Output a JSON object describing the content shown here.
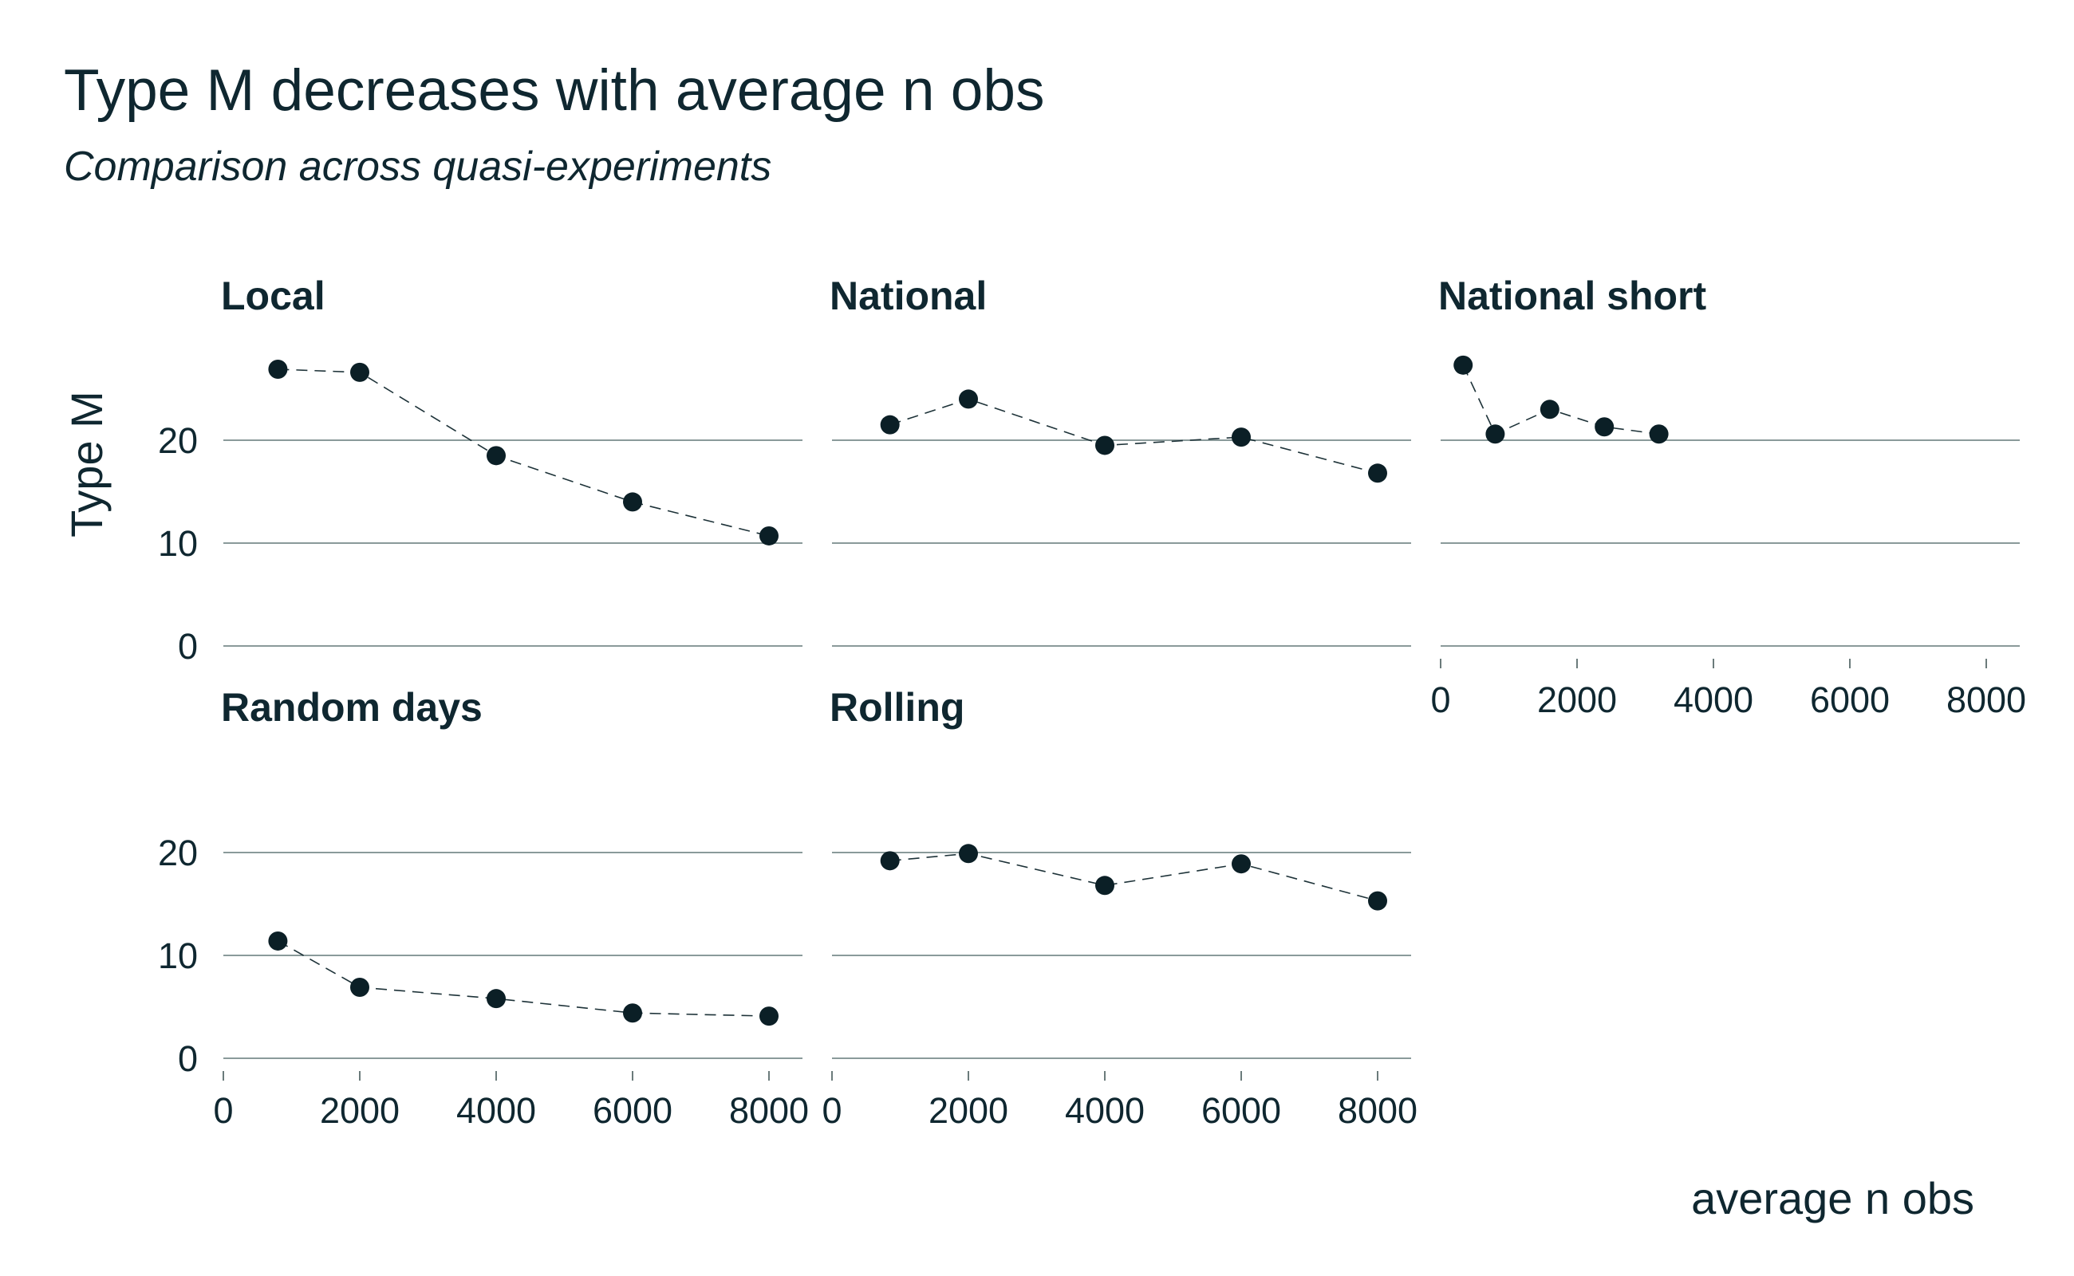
{
  "chart_data": {
    "type": "scatter",
    "title": "Type M decreases with average n obs",
    "subtitle": "Comparison across quasi-experiments",
    "xlabel": "average n obs",
    "ylabel": "Type M",
    "xlim": [
      0,
      8000
    ],
    "ylim": [
      0,
      27
    ],
    "x_ticks": [
      "0",
      "2000",
      "4000",
      "6000",
      "8000"
    ],
    "y_ticks": [
      "0",
      "10",
      "20"
    ],
    "y_tick_values": [
      0,
      10,
      20
    ],
    "x_tick_values": [
      0,
      2000,
      4000,
      6000,
      8000
    ],
    "grid": "horizontal",
    "facets": [
      {
        "name": "Local",
        "x": [
          800,
          2000,
          4000,
          6000,
          8000
        ],
        "y": [
          26.9,
          26.6,
          18.5,
          14.0,
          10.7
        ]
      },
      {
        "name": "National",
        "x": [
          850,
          2000,
          4000,
          6000,
          8000
        ],
        "y": [
          21.5,
          24.0,
          19.5,
          20.3,
          16.8
        ]
      },
      {
        "name": "National short",
        "x": [
          330,
          800,
          1600,
          2400,
          3200
        ],
        "y": [
          27.3,
          20.6,
          23.0,
          21.3,
          20.6
        ]
      },
      {
        "name": "Random days",
        "x": [
          800,
          2000,
          4000,
          6000,
          8000
        ],
        "y": [
          11.4,
          6.9,
          5.8,
          4.4,
          4.1
        ]
      },
      {
        "name": "Rolling",
        "x": [
          850,
          2000,
          4000,
          6000,
          8000
        ],
        "y": [
          19.2,
          19.9,
          16.8,
          18.9,
          15.3
        ]
      }
    ]
  }
}
